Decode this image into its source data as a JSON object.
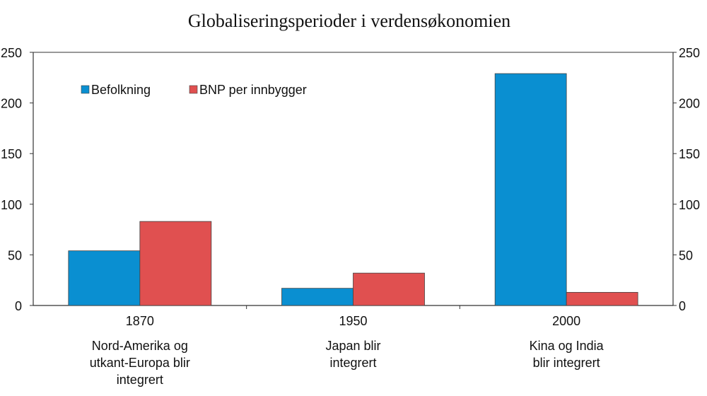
{
  "chart_data": {
    "type": "bar",
    "title": "Globaliseringsperioder i verdensøkonomien",
    "xlabel": "",
    "ylabel": "",
    "ylim": [
      0,
      250
    ],
    "yticks": [
      "0",
      "50",
      "100",
      "150",
      "200",
      "250"
    ],
    "ytick_values": [
      0,
      50,
      100,
      150,
      200,
      250
    ],
    "categories": [
      "1870",
      "1950",
      "2000"
    ],
    "category_descriptions": [
      [
        "Nord-Amerika og",
        "utkant-Europa blir",
        "integrert"
      ],
      [
        "Japan blir",
        "integrert"
      ],
      [
        "Kina og India",
        "blir integrert"
      ]
    ],
    "series": [
      {
        "name": "Befolkning",
        "color": "#0a8fd1",
        "values": [
          54,
          17,
          229
        ]
      },
      {
        "name": "BNP per innbygger",
        "color": "#e05050",
        "values": [
          83,
          32,
          13
        ]
      }
    ],
    "legend_position": "top-left",
    "grid": false,
    "secondary_y_axis": true
  }
}
